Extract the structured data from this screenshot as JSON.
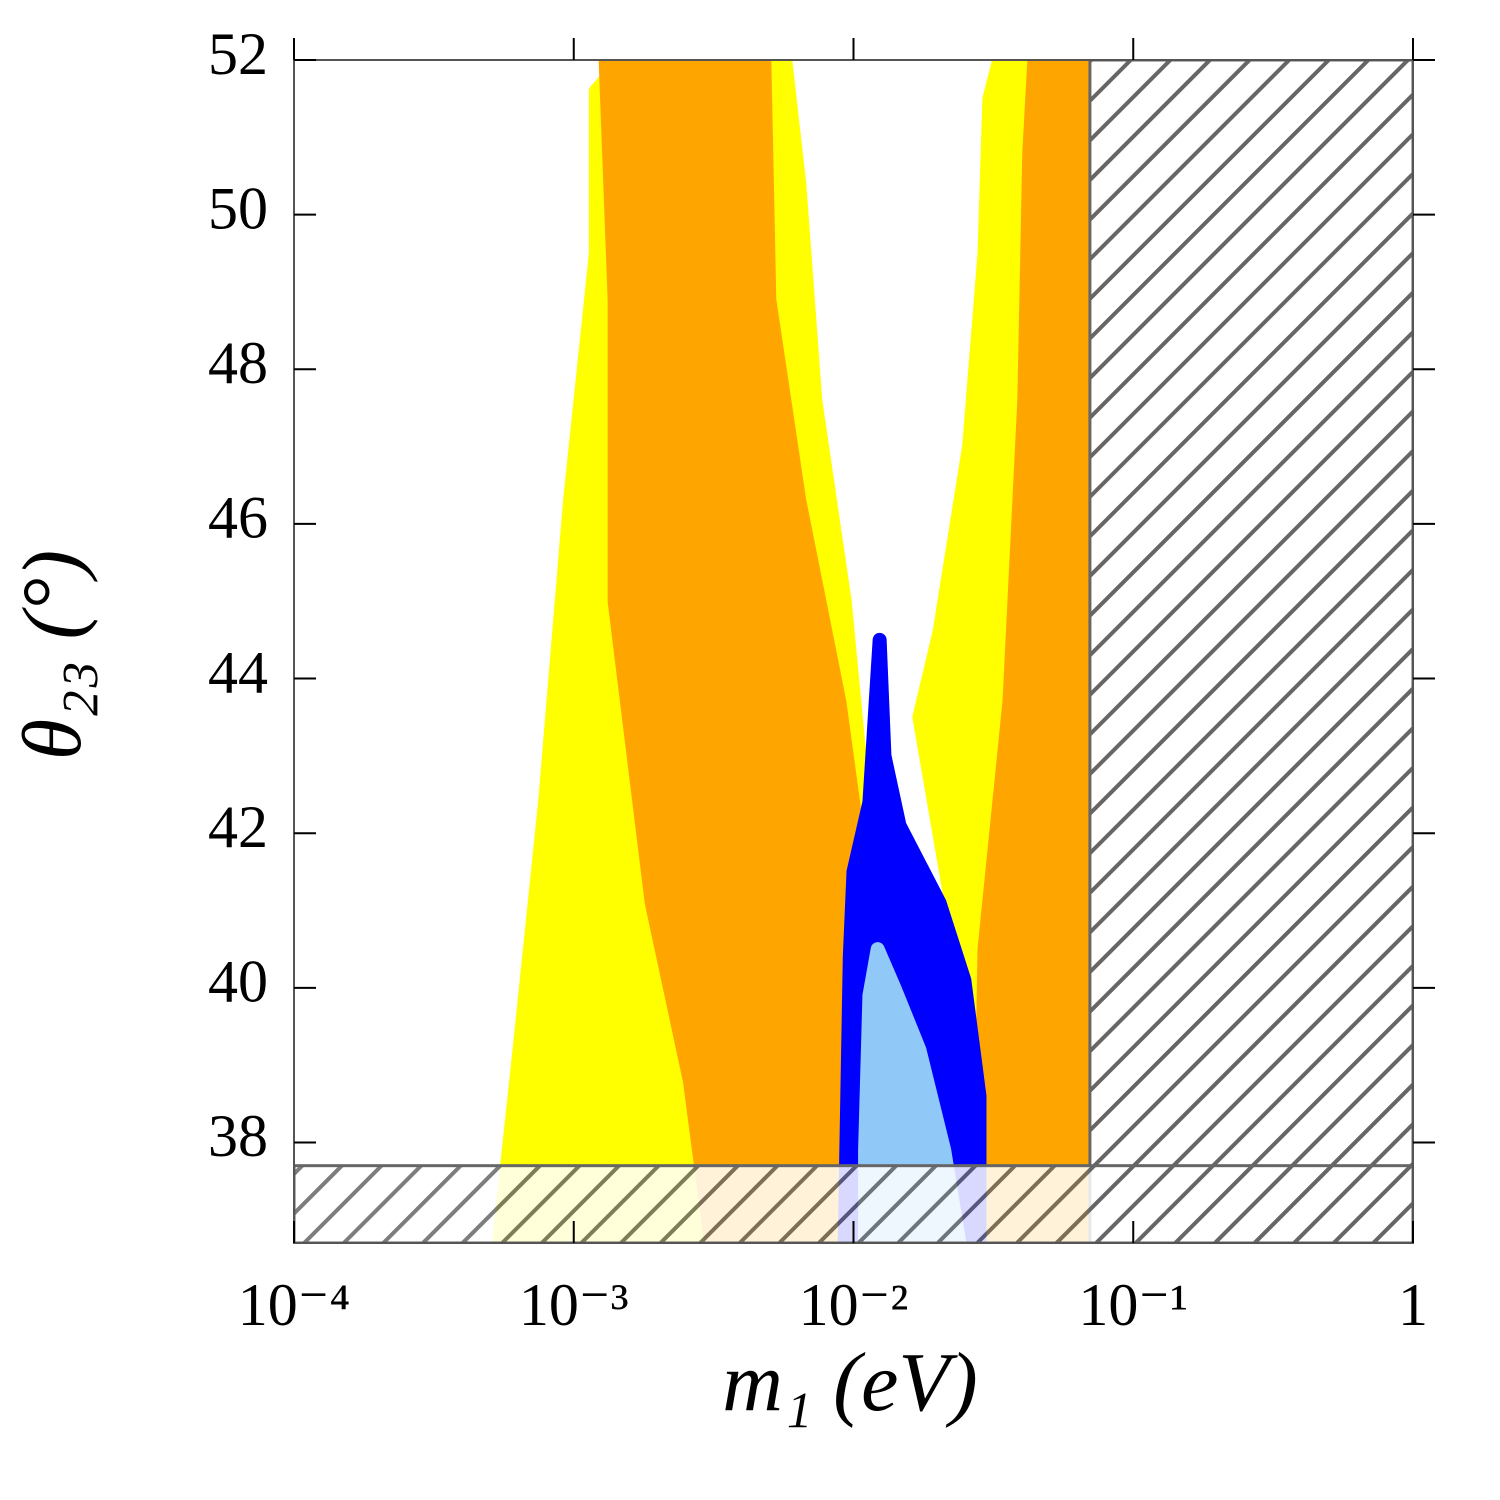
{
  "chart_data": {
    "type": "scatter",
    "xlabel": "m₁ (eV)",
    "ylabel": "θ₂₃ (°)",
    "xscale": "log",
    "xlim": [
      0.0001,
      1
    ],
    "ylim": [
      36.7,
      52
    ],
    "xticks": [
      {
        "value": 0.0001,
        "label": "10⁻⁴"
      },
      {
        "value": 0.001,
        "label": "10⁻³"
      },
      {
        "value": 0.01,
        "label": "10⁻²"
      },
      {
        "value": 0.1,
        "label": "10⁻¹"
      },
      1
    ],
    "yticks": [
      38,
      40,
      42,
      44,
      46,
      48,
      50,
      52
    ],
    "series": [
      {
        "color": "#ffff00",
        "x": [
          0.00054,
          0.00064,
          0.00079,
          0.00097,
          0.0012,
          0.0012,
          0.0015,
          0.0057,
          0.0064,
          0.0073,
          0.0093,
          0.0105,
          0.0089
        ],
        "y": [
          36.7,
          39.2,
          42.4,
          46.3,
          49.5,
          51.6,
          52,
          52,
          50.4,
          47.6,
          45.0,
          43.0,
          36.7
        ]
      },
      {
        "color": "#ffff00",
        "x": [
          0.0332,
          0.0757,
          0.0855,
          0.093,
          0.0891,
          0.027,
          0.0239,
          0.0172,
          0.0203,
          0.0259,
          0.0294,
          0.0306
        ],
        "y": [
          52,
          52,
          47.6,
          42.4,
          36.7,
          36.7,
          40.5,
          43.5,
          44.6,
          47.0,
          49.5,
          51.5
        ]
      },
      {
        "color": "#ffa500",
        "x": [
          0.0013,
          0.0048,
          0.005,
          0.0064,
          0.0089,
          0.0105,
          0.0097,
          0.0031,
          0.0026,
          0.0019,
          0.0014,
          0.0014
        ],
        "y": [
          52,
          52,
          48.9,
          46.3,
          43.7,
          41.8,
          36.7,
          36.7,
          38.8,
          41.1,
          45.0,
          48.9
        ]
      },
      {
        "color": "#ffa500",
        "x": [
          0.0443,
          0.07,
          0.0757,
          0.082,
          0.0757,
          0.0282,
          0.0294,
          0.0361,
          0.0408,
          0.0425
        ],
        "y": [
          52,
          52,
          48.9,
          43.7,
          36.7,
          36.7,
          40.5,
          43.7,
          47.6,
          50.8
        ]
      },
      {
        "color": "#0000ff",
        "x": [
          0.0124,
          0.0114,
          0.01,
          0.0097,
          0.0093,
          0.0282,
          0.0282,
          0.0249,
          0.0203,
          0.0146,
          0.0129
        ],
        "y": [
          44.5,
          42.4,
          41.5,
          40.4,
          36.7,
          36.7,
          38.6,
          40.1,
          41.1,
          42.1,
          43.0
        ]
      },
      {
        "color": "#90c8f8",
        "x": [
          0.0122,
          0.0114,
          0.011,
          0.011,
          0.0239,
          0.0211,
          0.0172,
          0.014
        ],
        "y": [
          40.5,
          39.9,
          37.9,
          36.7,
          36.7,
          37.9,
          39.2,
          40.0
        ]
      }
    ],
    "excluded_regions": [
      {
        "xlim": [
          0.07,
          1
        ],
        "ylim": [
          36.7,
          52
        ]
      },
      {
        "xlim": [
          0.0001,
          1
        ],
        "ylim": [
          36.7,
          37.7
        ]
      }
    ]
  }
}
